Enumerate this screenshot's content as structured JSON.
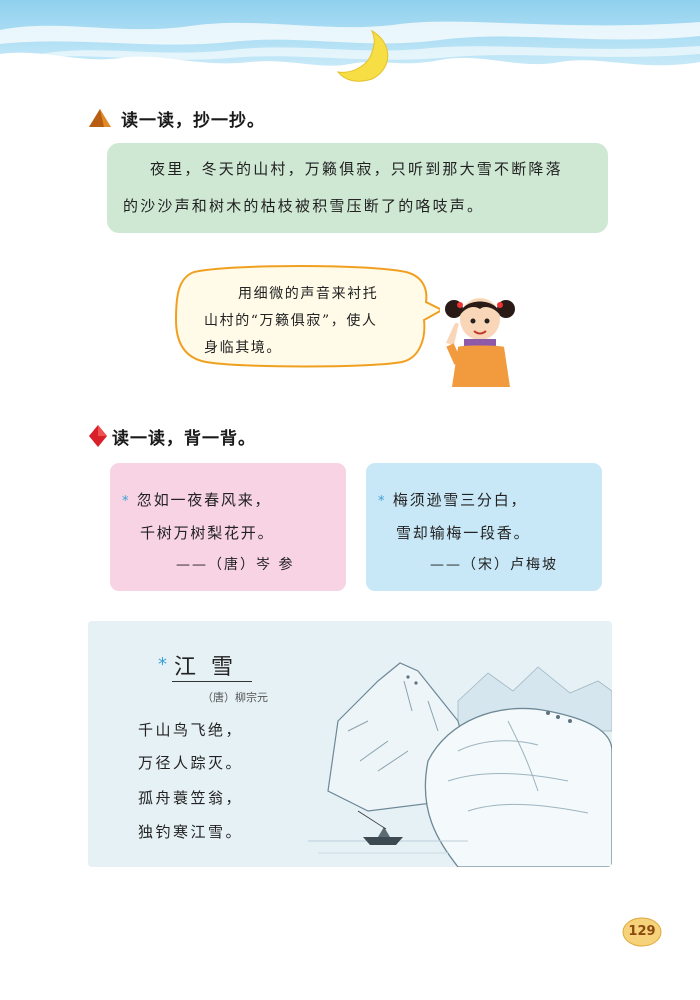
{
  "sections": {
    "read_copy": {
      "title": "读一读，抄一抄。",
      "passage": {
        "lines": [
          "夜里，冬天的山村，万籁俱寂，只听到那大雪不断降落",
          "的沙沙声和树木的枯枝被积雪压断了的咯吱声。"
        ]
      },
      "speech_bubble": {
        "lines": [
          "用细微的声音来衬托",
          "山村的“万籁俱寂”，使人",
          "身临其境。"
        ]
      }
    },
    "read_recite": {
      "title": "读一读，背一背。",
      "poem_left": {
        "star": "*",
        "line1": "忽如一夜春风来，",
        "line2": "千树万树梨花开。",
        "author": "——（唐）岑  参"
      },
      "poem_right": {
        "star": "*",
        "line1": "梅须逊雪三分白，",
        "line2": "雪却输梅一段香。",
        "author": "——（宋）卢梅坡"
      }
    },
    "jiang_xue": {
      "star": "*",
      "title": "江  雪",
      "author": "（唐）柳宗元",
      "lines": [
        "千山鸟飞绝，",
        "万径人踪灭。",
        "孤舟蓑笠翁，",
        "独钓寒江雪。"
      ]
    }
  },
  "page_number": "129",
  "colors": {
    "sky": "#a9dcf2",
    "passage_bg": "#cfe8d4",
    "card_pink": "#f8d3e4",
    "card_blue": "#c9e8f7",
    "star": "#3aa0d8",
    "triangle_icon": "#e08a2a",
    "diamond_icon": "#d8202a"
  },
  "icons": [
    "crescent-moon-icon",
    "triangle-bullet-icon",
    "diamond-bullet-icon",
    "girl-illustration",
    "snow-mountain-painting"
  ]
}
